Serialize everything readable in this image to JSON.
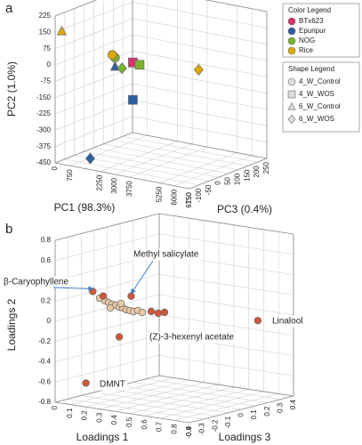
{
  "chart_data": [
    {
      "type": "scatter3d",
      "panel": "a",
      "x_label": "PC1 (98.3%)",
      "y_label": "PC2 (1.0%)",
      "z_label": "PC3 (0.4%)",
      "xlim": [
        0,
        6750
      ],
      "xticks": [
        0,
        750,
        2250,
        3000,
        3750,
        5250,
        6000,
        6750
      ],
      "ylim": [
        -450,
        225
      ],
      "yticks": [
        225,
        150,
        75,
        0,
        -75,
        -150,
        -225,
        -300,
        -375,
        -450
      ],
      "zlim": [
        -150,
        250
      ],
      "zticks": [
        -150,
        -100,
        -50,
        0,
        50,
        100,
        150,
        200,
        250
      ],
      "grid": true,
      "color_legend_title": "Color Legend",
      "shape_legend_title": "Shape Legend",
      "shape_legend": [
        {
          "name": "4_W_Control",
          "marker": "circle"
        },
        {
          "name": "4_W_WOS",
          "marker": "square"
        },
        {
          "name": "6_W_Control",
          "marker": "triangle"
        },
        {
          "name": "6_W_WOS",
          "marker": "diamond"
        }
      ],
      "series": [
        {
          "name": "BTx623",
          "color": "#d6336c",
          "x": [
            3713
          ],
          "y": [
            70
          ],
          "z": [
            -130
          ],
          "shapes": [
            "4_W_WOS"
          ]
        },
        {
          "name": "Epuripur",
          "color": "#2e5fa0",
          "x": [
            2700,
            1688,
            3713
          ],
          "y": [
            28,
            -403,
            -102
          ],
          "z": [
            -118,
            -142,
            -130
          ],
          "shapes": [
            "6_W_Control",
            "6_W_WOS",
            "4_W_WOS"
          ]
        },
        {
          "name": "NOG",
          "color": "#7ab32e",
          "x": [
            2700,
            4050,
            2970
          ],
          "y": [
            70,
            65,
            23
          ],
          "z": [
            -118,
            -130,
            -110
          ],
          "shapes": [
            "4_W_Control",
            "4_W_WOS",
            "6_W_WOS"
          ]
        },
        {
          "name": "Rice",
          "color": "#e0a800",
          "x": [
            337,
            2565,
            3713
          ],
          "y": [
            161,
            80,
            -82
          ],
          "z": [
            -150,
            -118,
            210
          ],
          "shapes": [
            "6_W_Control",
            "4_W_Control",
            "6_W_WOS"
          ]
        }
      ]
    },
    {
      "type": "scatter3d",
      "panel": "b",
      "x_label": "Loadings 1",
      "y_label": "Loadings 2",
      "z_label": "Loadings 3",
      "xlim": [
        0,
        0.9
      ],
      "xticks": [
        0,
        0.1,
        0.2,
        0.3,
        0.4,
        0.5,
        0.6,
        0.7,
        0.8,
        0.9
      ],
      "ylim": [
        -0.8,
        0.8
      ],
      "yticks": [
        0.8,
        0.6,
        0.4,
        0.2,
        0,
        -0.2,
        -0.4,
        -0.6,
        -0.8
      ],
      "zlim": [
        -0.4,
        0.4
      ],
      "zticks": [
        -0.4,
        -0.3,
        -0.2,
        -0.1,
        0,
        0.1,
        0.2,
        0.3,
        0.4
      ],
      "grid": true,
      "series": [
        {
          "color": "#e9c8a4",
          "x": [
            0.228,
            0.264,
            0.288,
            0.312,
            0.336,
            0.36,
            0.383,
            0.407,
            0.431,
            0.455,
            0.484,
            0.514,
            0.3,
            0.371
          ],
          "y": [
            0.253,
            0.235,
            0.224,
            0.211,
            0.208,
            0.195,
            0.192,
            0.179,
            0.176,
            0.171,
            0.189,
            0.176,
            0.173,
            0.233
          ],
          "z": [
            -0.32,
            -0.32,
            -0.32,
            -0.32,
            -0.32,
            -0.32,
            -0.32,
            -0.32,
            -0.32,
            -0.32,
            -0.32,
            -0.32,
            -0.32,
            -0.32
          ]
        },
        {
          "color": "#d2573a",
          "x": [
            0.675,
            0.18,
            0.36,
            0.2,
            0.405,
            0.252,
            0.574,
            0.621,
            0.663
          ],
          "y": [
            -0.1,
            -0.58,
            -0.1,
            0.32,
            0.3,
            0.28,
            0.2,
            0.193,
            0.211
          ],
          "z": [
            0.384,
            -0.37,
            -0.32,
            -0.34,
            -0.28,
            -0.32,
            -0.32,
            -0.32,
            -0.32
          ],
          "labels": [
            "Linalool",
            "DMNT",
            "(Z)-3-hexenyl acetate",
            "β-Caryophyllene",
            "Methyl salicylate",
            null,
            null,
            null,
            null
          ]
        }
      ]
    }
  ]
}
